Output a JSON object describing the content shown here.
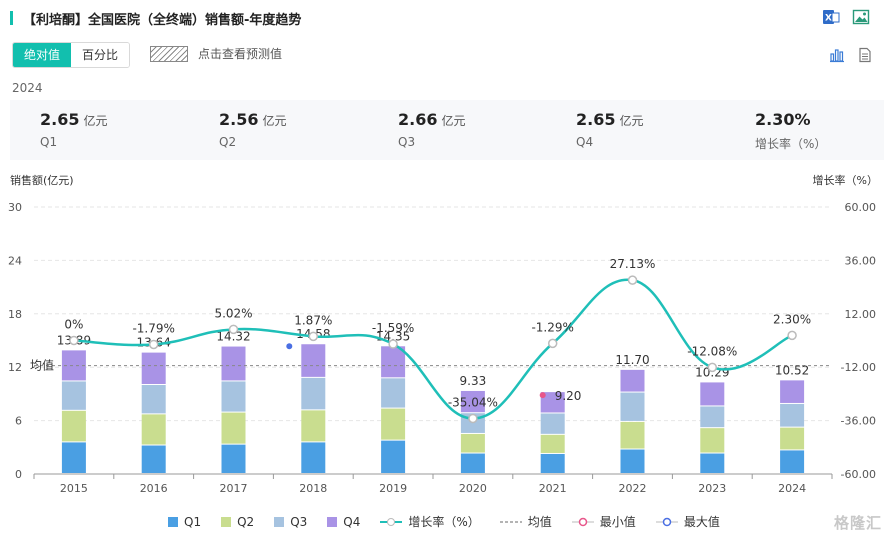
{
  "header": {
    "title": "【利培酮】全国医院（全终端）销售额-年度趋势",
    "icons": [
      "excel-export-icon",
      "image-export-icon"
    ]
  },
  "toolbar": {
    "absolute_label": "绝对值",
    "percent_label": "百分比",
    "forecast_label": "点击查看预测值",
    "right_icons": [
      "bar-chart-icon",
      "document-icon"
    ]
  },
  "summary": {
    "year": "2024",
    "items": [
      {
        "value": "2.65",
        "unit": "亿元",
        "name": "Q1"
      },
      {
        "value": "2.56",
        "unit": "亿元",
        "name": "Q2"
      },
      {
        "value": "2.66",
        "unit": "亿元",
        "name": "Q3"
      },
      {
        "value": "2.65",
        "unit": "亿元",
        "name": "Q4"
      },
      {
        "value": "2.30%",
        "unit": "",
        "name": "增长率（%）"
      }
    ]
  },
  "colors": {
    "accent": "#12bfae",
    "q1": "#4a9fe3",
    "q2": "#c9dd8f",
    "q3": "#a6c3e0",
    "q4": "#a993e6",
    "growth_line": "#1fbfb8",
    "min_marker": "#e8558a",
    "max_marker": "#4a6fe3"
  },
  "chart_data": {
    "type": "bar",
    "stacked": true,
    "categories": [
      "2015",
      "2016",
      "2017",
      "2018",
      "2019",
      "2020",
      "2021",
      "2022",
      "2023",
      "2024"
    ],
    "series": [
      {
        "name": "Q1",
        "values": [
          3.55,
          3.2,
          3.3,
          3.55,
          3.75,
          2.3,
          2.25,
          2.75,
          2.3,
          2.65
        ]
      },
      {
        "name": "Q2",
        "values": [
          3.55,
          3.5,
          3.6,
          3.6,
          3.6,
          2.2,
          2.15,
          3.1,
          2.85,
          2.56
        ]
      },
      {
        "name": "Q3",
        "values": [
          3.3,
          3.3,
          3.5,
          3.65,
          3.4,
          2.33,
          2.4,
          3.3,
          2.44,
          2.66
        ]
      },
      {
        "name": "Q4",
        "values": [
          3.49,
          3.64,
          3.92,
          3.78,
          3.6,
          2.5,
          2.4,
          2.55,
          2.7,
          2.65
        ]
      }
    ],
    "totals": [
      13.89,
      13.64,
      14.32,
      14.58,
      14.35,
      9.33,
      9.2,
      11.7,
      10.29,
      10.52
    ],
    "total_labels": [
      "13.89",
      "13.64",
      "14.32",
      "14.58",
      "14.35",
      "9.33",
      "9.20",
      "11.70",
      "10.29",
      "10.52"
    ],
    "growth": {
      "name": "增长率（%）",
      "values": [
        0,
        -1.79,
        5.02,
        1.87,
        -1.59,
        -35.04,
        -1.29,
        27.13,
        -12.08,
        2.3
      ],
      "labels": [
        "0%",
        "-1.79%",
        "5.02%",
        "1.87%",
        "-1.59%",
        "-35.04%",
        "-1.29%",
        "27.13%",
        "-12.08%",
        "2.30%"
      ]
    },
    "mean": {
      "name": "均值",
      "value": 12.18,
      "label": "均值"
    },
    "min_label": "最小值",
    "max_label": "最大值",
    "min_index": 6,
    "max_index": 3,
    "ylabel_left": "销售额(亿元)",
    "ylabel_right": "增长率（%）",
    "ylim_left": [
      0,
      30
    ],
    "yticks_left": [
      "0",
      "6",
      "12",
      "18",
      "24",
      "30"
    ],
    "ylim_right": [
      -60,
      60
    ],
    "yticks_right": [
      "-60.00",
      "-36.00",
      "-12.00",
      "12.00",
      "36.00",
      "60.00"
    ],
    "grid": true,
    "legend_position": "bottom"
  },
  "watermark": "格隆汇"
}
